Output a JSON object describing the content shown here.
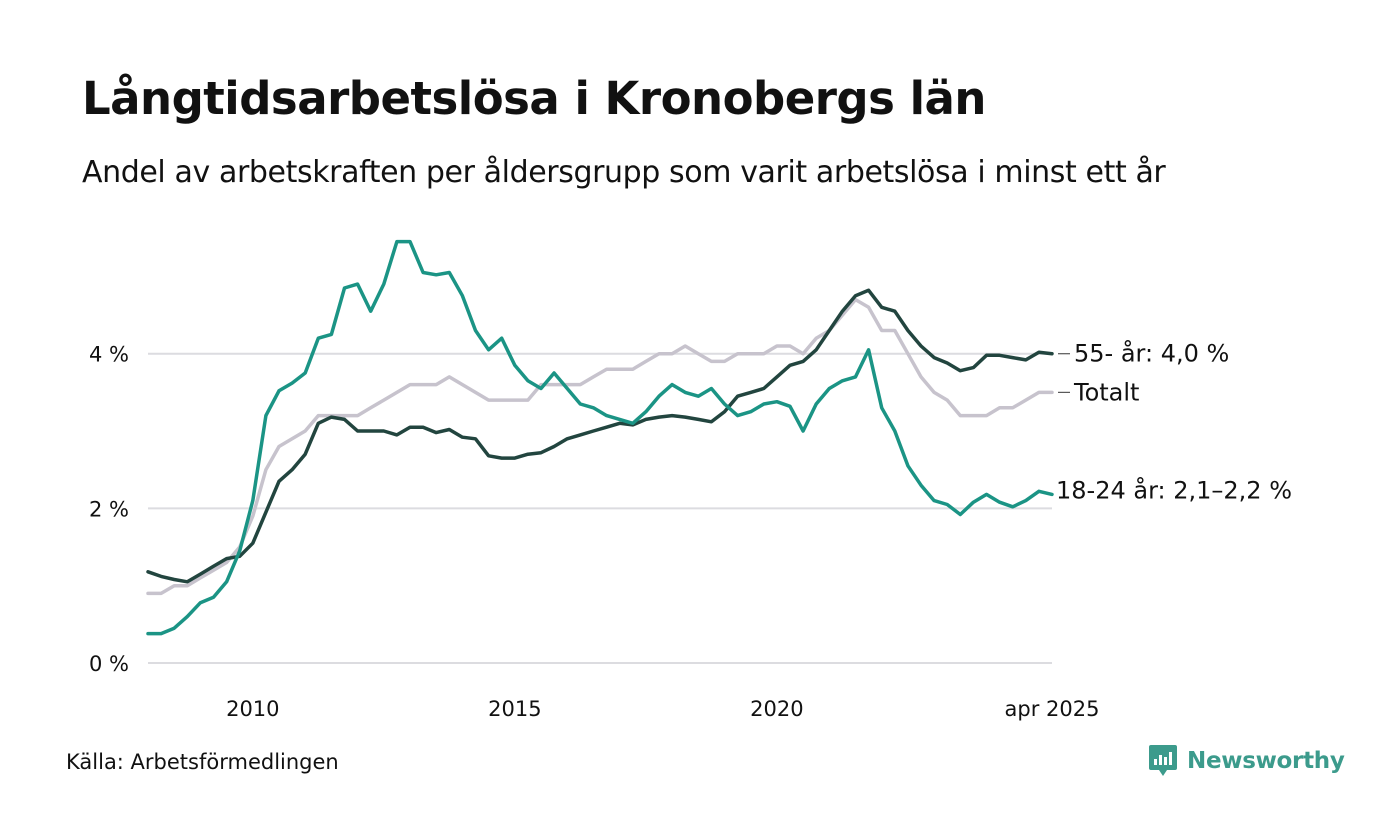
{
  "title": "Långtidsarbetslösa i Kronobergs län",
  "subtitle": "Andel av arbetskraften per åldersgrupp som varit arbetslösa i minst ett år",
  "source": "Källa: Arbetsförmedlingen",
  "brand": "Newsworthy",
  "colors": {
    "youth": "#1b9485",
    "older": "#22453f",
    "total": "#c7c3cd",
    "grid": "#dcdce0",
    "brand": "#3c9b8c"
  },
  "chart_data": {
    "type": "line",
    "ylim": [
      0,
      5.6
    ],
    "xlim": [
      2008.0,
      2025.25
    ],
    "yticks": [
      {
        "value": 0,
        "label": "0 %"
      },
      {
        "value": 2,
        "label": "2 %"
      },
      {
        "value": 4,
        "label": "4 %"
      }
    ],
    "xticks": [
      {
        "value": 2010,
        "label": "2010"
      },
      {
        "value": 2015,
        "label": "2015"
      },
      {
        "value": 2020,
        "label": "2020"
      },
      {
        "value": 2025.25,
        "label": "apr 2025"
      }
    ],
    "series": [
      {
        "name": "Totalt",
        "color_key": "total",
        "label": "Totalt",
        "label_value": 3.5,
        "points": [
          [
            2008.0,
            0.9
          ],
          [
            2008.25,
            0.9
          ],
          [
            2008.5,
            1.0
          ],
          [
            2008.75,
            1.0
          ],
          [
            2009.0,
            1.1
          ],
          [
            2009.25,
            1.2
          ],
          [
            2009.5,
            1.3
          ],
          [
            2009.75,
            1.5
          ],
          [
            2010.0,
            1.9
          ],
          [
            2010.25,
            2.5
          ],
          [
            2010.5,
            2.8
          ],
          [
            2010.75,
            2.9
          ],
          [
            2011.0,
            3.0
          ],
          [
            2011.25,
            3.2
          ],
          [
            2011.5,
            3.2
          ],
          [
            2011.75,
            3.2
          ],
          [
            2012.0,
            3.2
          ],
          [
            2012.25,
            3.3
          ],
          [
            2012.5,
            3.4
          ],
          [
            2012.75,
            3.5
          ],
          [
            2013.0,
            3.6
          ],
          [
            2013.25,
            3.6
          ],
          [
            2013.5,
            3.6
          ],
          [
            2013.75,
            3.7
          ],
          [
            2014.0,
            3.6
          ],
          [
            2014.25,
            3.5
          ],
          [
            2014.5,
            3.4
          ],
          [
            2014.75,
            3.4
          ],
          [
            2015.0,
            3.4
          ],
          [
            2015.25,
            3.4
          ],
          [
            2015.5,
            3.6
          ],
          [
            2015.75,
            3.6
          ],
          [
            2016.0,
            3.6
          ],
          [
            2016.25,
            3.6
          ],
          [
            2016.5,
            3.7
          ],
          [
            2016.75,
            3.8
          ],
          [
            2017.0,
            3.8
          ],
          [
            2017.25,
            3.8
          ],
          [
            2017.5,
            3.9
          ],
          [
            2017.75,
            4.0
          ],
          [
            2018.0,
            4.0
          ],
          [
            2018.25,
            4.1
          ],
          [
            2018.5,
            4.0
          ],
          [
            2018.75,
            3.9
          ],
          [
            2019.0,
            3.9
          ],
          [
            2019.25,
            4.0
          ],
          [
            2019.5,
            4.0
          ],
          [
            2019.75,
            4.0
          ],
          [
            2020.0,
            4.1
          ],
          [
            2020.25,
            4.1
          ],
          [
            2020.5,
            4.0
          ],
          [
            2020.75,
            4.2
          ],
          [
            2021.0,
            4.3
          ],
          [
            2021.25,
            4.5
          ],
          [
            2021.5,
            4.7
          ],
          [
            2021.75,
            4.6
          ],
          [
            2022.0,
            4.3
          ],
          [
            2022.25,
            4.3
          ],
          [
            2022.5,
            4.0
          ],
          [
            2022.75,
            3.7
          ],
          [
            2023.0,
            3.5
          ],
          [
            2023.25,
            3.4
          ],
          [
            2023.5,
            3.2
          ],
          [
            2023.75,
            3.2
          ],
          [
            2024.0,
            3.2
          ],
          [
            2024.25,
            3.3
          ],
          [
            2024.5,
            3.3
          ],
          [
            2024.75,
            3.4
          ],
          [
            2025.0,
            3.5
          ],
          [
            2025.25,
            3.5
          ]
        ]
      },
      {
        "name": "55- år",
        "color_key": "older",
        "label": "55- år: 4,0 %",
        "label_value": 4.0,
        "points": [
          [
            2008.0,
            1.18
          ],
          [
            2008.25,
            1.12
          ],
          [
            2008.5,
            1.08
          ],
          [
            2008.75,
            1.05
          ],
          [
            2009.0,
            1.15
          ],
          [
            2009.25,
            1.25
          ],
          [
            2009.5,
            1.35
          ],
          [
            2009.75,
            1.38
          ],
          [
            2010.0,
            1.55
          ],
          [
            2010.25,
            1.95
          ],
          [
            2010.5,
            2.35
          ],
          [
            2010.75,
            2.5
          ],
          [
            2011.0,
            2.7
          ],
          [
            2011.25,
            3.1
          ],
          [
            2011.5,
            3.18
          ],
          [
            2011.75,
            3.15
          ],
          [
            2012.0,
            3.0
          ],
          [
            2012.25,
            3.0
          ],
          [
            2012.5,
            3.0
          ],
          [
            2012.75,
            2.95
          ],
          [
            2013.0,
            3.05
          ],
          [
            2013.25,
            3.05
          ],
          [
            2013.5,
            2.98
          ],
          [
            2013.75,
            3.02
          ],
          [
            2014.0,
            2.92
          ],
          [
            2014.25,
            2.9
          ],
          [
            2014.5,
            2.68
          ],
          [
            2014.75,
            2.65
          ],
          [
            2015.0,
            2.65
          ],
          [
            2015.25,
            2.7
          ],
          [
            2015.5,
            2.72
          ],
          [
            2015.75,
            2.8
          ],
          [
            2016.0,
            2.9
          ],
          [
            2016.25,
            2.95
          ],
          [
            2016.5,
            3.0
          ],
          [
            2016.75,
            3.05
          ],
          [
            2017.0,
            3.1
          ],
          [
            2017.25,
            3.08
          ],
          [
            2017.5,
            3.15
          ],
          [
            2017.75,
            3.18
          ],
          [
            2018.0,
            3.2
          ],
          [
            2018.25,
            3.18
          ],
          [
            2018.5,
            3.15
          ],
          [
            2018.75,
            3.12
          ],
          [
            2019.0,
            3.25
          ],
          [
            2019.25,
            3.45
          ],
          [
            2019.5,
            3.5
          ],
          [
            2019.75,
            3.55
          ],
          [
            2020.0,
            3.7
          ],
          [
            2020.25,
            3.85
          ],
          [
            2020.5,
            3.9
          ],
          [
            2020.75,
            4.05
          ],
          [
            2021.0,
            4.3
          ],
          [
            2021.25,
            4.55
          ],
          [
            2021.5,
            4.75
          ],
          [
            2021.75,
            4.82
          ],
          [
            2022.0,
            4.6
          ],
          [
            2022.25,
            4.55
          ],
          [
            2022.5,
            4.3
          ],
          [
            2022.75,
            4.1
          ],
          [
            2023.0,
            3.95
          ],
          [
            2023.25,
            3.88
          ],
          [
            2023.5,
            3.78
          ],
          [
            2023.75,
            3.82
          ],
          [
            2024.0,
            3.98
          ],
          [
            2024.25,
            3.98
          ],
          [
            2024.5,
            3.95
          ],
          [
            2024.75,
            3.92
          ],
          [
            2025.0,
            4.02
          ],
          [
            2025.25,
            4.0
          ]
        ]
      },
      {
        "name": "18-24 år",
        "color_key": "youth",
        "label": "18-24 år: 2,1–2,2 %",
        "label_value": 2.1,
        "points": [
          [
            2008.0,
            0.38
          ],
          [
            2008.25,
            0.38
          ],
          [
            2008.5,
            0.45
          ],
          [
            2008.75,
            0.6
          ],
          [
            2009.0,
            0.78
          ],
          [
            2009.25,
            0.85
          ],
          [
            2009.5,
            1.05
          ],
          [
            2009.75,
            1.45
          ],
          [
            2010.0,
            2.1
          ],
          [
            2010.25,
            3.2
          ],
          [
            2010.5,
            3.52
          ],
          [
            2010.75,
            3.62
          ],
          [
            2011.0,
            3.75
          ],
          [
            2011.25,
            4.2
          ],
          [
            2011.5,
            4.25
          ],
          [
            2011.75,
            4.85
          ],
          [
            2012.0,
            4.9
          ],
          [
            2012.25,
            4.55
          ],
          [
            2012.5,
            4.9
          ],
          [
            2012.75,
            5.45
          ],
          [
            2013.0,
            5.45
          ],
          [
            2013.25,
            5.05
          ],
          [
            2013.5,
            5.02
          ],
          [
            2013.75,
            5.05
          ],
          [
            2014.0,
            4.75
          ],
          [
            2014.25,
            4.3
          ],
          [
            2014.5,
            4.05
          ],
          [
            2014.75,
            4.2
          ],
          [
            2015.0,
            3.85
          ],
          [
            2015.25,
            3.65
          ],
          [
            2015.5,
            3.55
          ],
          [
            2015.75,
            3.75
          ],
          [
            2016.0,
            3.55
          ],
          [
            2016.25,
            3.35
          ],
          [
            2016.5,
            3.3
          ],
          [
            2016.75,
            3.2
          ],
          [
            2017.0,
            3.15
          ],
          [
            2017.25,
            3.1
          ],
          [
            2017.5,
            3.25
          ],
          [
            2017.75,
            3.45
          ],
          [
            2018.0,
            3.6
          ],
          [
            2018.25,
            3.5
          ],
          [
            2018.5,
            3.45
          ],
          [
            2018.75,
            3.55
          ],
          [
            2019.0,
            3.35
          ],
          [
            2019.25,
            3.2
          ],
          [
            2019.5,
            3.25
          ],
          [
            2019.75,
            3.35
          ],
          [
            2020.0,
            3.38
          ],
          [
            2020.25,
            3.32
          ],
          [
            2020.5,
            3.0
          ],
          [
            2020.75,
            3.35
          ],
          [
            2021.0,
            3.55
          ],
          [
            2021.25,
            3.65
          ],
          [
            2021.5,
            3.7
          ],
          [
            2021.75,
            4.05
          ],
          [
            2022.0,
            3.3
          ],
          [
            2022.25,
            3.0
          ],
          [
            2022.5,
            2.55
          ],
          [
            2022.75,
            2.3
          ],
          [
            2023.0,
            2.1
          ],
          [
            2023.25,
            2.05
          ],
          [
            2023.5,
            1.92
          ],
          [
            2023.75,
            2.08
          ],
          [
            2024.0,
            2.18
          ],
          [
            2024.25,
            2.08
          ],
          [
            2024.5,
            2.02
          ],
          [
            2024.75,
            2.1
          ],
          [
            2025.0,
            2.22
          ],
          [
            2025.25,
            2.18
          ]
        ]
      }
    ]
  }
}
